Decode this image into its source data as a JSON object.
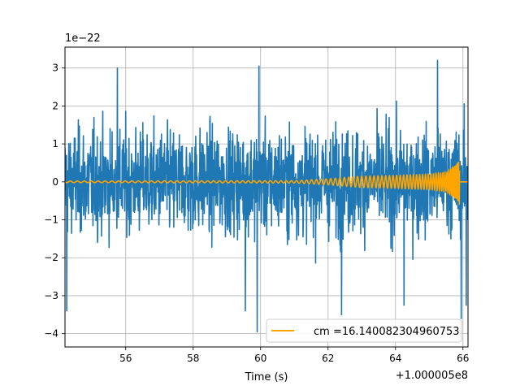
{
  "chart_data": {
    "type": "line",
    "title": "",
    "xlabel": "Time (s)",
    "ylabel": "",
    "x_offset_label": "+1.000005e8",
    "y_scale_label": "1e−22",
    "xlim": [
      54.2,
      66.15
    ],
    "ylim": [
      -4.35,
      3.55
    ],
    "x_ticks": [
      56,
      58,
      60,
      62,
      64,
      66
    ],
    "x_tick_labels": [
      "56",
      "58",
      "60",
      "62",
      "64",
      "66"
    ],
    "y_ticks": [
      -4,
      -3,
      -2,
      -1,
      0,
      1,
      2,
      3
    ],
    "y_tick_labels": [
      "−4",
      "−3",
      "−2",
      "−1",
      "0",
      "1",
      "2",
      "3"
    ],
    "grid": true,
    "legend_position": "lower-right",
    "series": [
      {
        "name": "",
        "color": "#1f77b4",
        "kind": "noise",
        "x_range": [
          54.2,
          66.15
        ],
        "typical_envelope": [
          -2.1,
          2.1
        ],
        "min": -4.0,
        "max": 3.2,
        "peak_points": [
          {
            "x": 54.25,
            "y": -3.4
          },
          {
            "x": 55.75,
            "y": 3.0
          },
          {
            "x": 59.55,
            "y": -3.4
          },
          {
            "x": 59.9,
            "y": -3.95
          },
          {
            "x": 59.95,
            "y": 3.05
          },
          {
            "x": 62.4,
            "y": -3.5
          },
          {
            "x": 64.25,
            "y": -3.25
          },
          {
            "x": 65.25,
            "y": 3.2
          },
          {
            "x": 65.95,
            "y": -3.6
          },
          {
            "x": 66.1,
            "y": -3.25
          }
        ]
      },
      {
        "name": "cm =16.140082304960753",
        "color": "#ffa500",
        "kind": "chirp",
        "x_range": [
          54.2,
          65.9
        ],
        "envelope": [
          {
            "x": 54.2,
            "a": 0.02
          },
          {
            "x": 61.0,
            "a": 0.03
          },
          {
            "x": 62.0,
            "a": 0.08
          },
          {
            "x": 63.0,
            "a": 0.15
          },
          {
            "x": 64.0,
            "a": 0.17
          },
          {
            "x": 65.0,
            "a": 0.2
          },
          {
            "x": 65.5,
            "a": 0.25
          },
          {
            "x": 65.8,
            "a": 0.45
          },
          {
            "x": 65.88,
            "a": 0.55
          }
        ],
        "merger_time": 65.88,
        "post_merger_min": -0.6
      }
    ]
  }
}
